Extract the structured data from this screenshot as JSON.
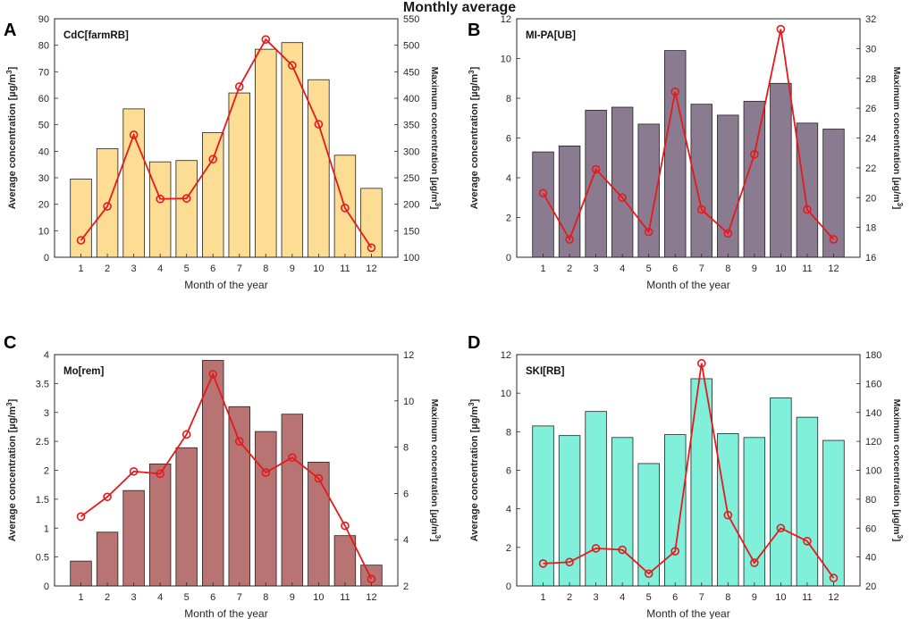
{
  "figure_title": "Monthly average",
  "chart_data": [
    {
      "type": "bar",
      "panel": "A",
      "label": "CdC[farmRB]",
      "bar_color": "#FDDC94",
      "line_color": "#E41A1C",
      "categories": [
        "1",
        "2",
        "3",
        "4",
        "5",
        "6",
        "7",
        "8",
        "9",
        "10",
        "11",
        "12"
      ],
      "xlabel": "Month of the year",
      "ylabel": [
        "Average concentration [µg/m",
        "3",
        "]"
      ],
      "ylabel2": [
        "Maximum concentration [µg/m",
        "3",
        "]"
      ],
      "ylim": [
        0,
        90
      ],
      "yticks": [
        0,
        10,
        20,
        30,
        40,
        50,
        60,
        70,
        80,
        90
      ],
      "y2lim": [
        100,
        550
      ],
      "y2ticks": [
        100,
        150,
        200,
        250,
        300,
        350,
        400,
        450,
        500,
        550
      ],
      "series": [
        {
          "name": "Average concentration",
          "kind": "bar",
          "axis": "left",
          "values": [
            29.5,
            41,
            56,
            36,
            36.5,
            47,
            62,
            78.5,
            81,
            67,
            38.5,
            26
          ]
        },
        {
          "name": "Maximum concentration",
          "kind": "line",
          "axis": "right",
          "values": [
            132,
            196,
            331,
            210,
            211,
            285,
            422,
            511,
            462,
            351,
            193,
            118
          ]
        }
      ]
    },
    {
      "type": "bar",
      "panel": "B",
      "label": "MI-PA[UB]",
      "bar_color": "#8B7B91",
      "line_color": "#E41A1C",
      "categories": [
        "1",
        "2",
        "3",
        "4",
        "5",
        "6",
        "7",
        "8",
        "9",
        "10",
        "11",
        "12"
      ],
      "xlabel": "Month of the year",
      "ylabel": [
        "Average concentration [µg/m",
        "3",
        "]"
      ],
      "ylabel2": [
        "Maximum concentration [µg/m",
        "3",
        "]"
      ],
      "ylim": [
        0,
        12
      ],
      "yticks": [
        0,
        2,
        4,
        6,
        8,
        10,
        12
      ],
      "y2lim": [
        16,
        32
      ],
      "y2ticks": [
        16,
        18,
        20,
        22,
        24,
        26,
        28,
        30,
        32
      ],
      "series": [
        {
          "name": "Average concentration",
          "kind": "bar",
          "axis": "left",
          "values": [
            5.3,
            5.6,
            7.4,
            7.55,
            6.7,
            10.4,
            7.7,
            7.15,
            7.85,
            8.75,
            6.75,
            6.45
          ]
        },
        {
          "name": "Maximum concentration",
          "kind": "line",
          "axis": "right",
          "values": [
            20.3,
            17.2,
            21.9,
            20.0,
            17.7,
            27.1,
            19.2,
            17.6,
            22.9,
            31.3,
            19.2,
            17.2
          ]
        }
      ]
    },
    {
      "type": "bar",
      "panel": "C",
      "label": "Mo[rem]",
      "bar_color": "#B87373",
      "line_color": "#E41A1C",
      "categories": [
        "1",
        "2",
        "3",
        "4",
        "5",
        "6",
        "7",
        "8",
        "9",
        "10",
        "11",
        "12"
      ],
      "xlabel": "Month of the year",
      "ylabel": [
        "Average concentration [µg/m",
        "3",
        "]"
      ],
      "ylabel2": [
        "Maximum concentration [µg/m",
        "3",
        "]"
      ],
      "ylim": [
        0,
        4
      ],
      "yticks": [
        0,
        0.5,
        1,
        1.5,
        2,
        2.5,
        3,
        3.5,
        4
      ],
      "y2lim": [
        2,
        12
      ],
      "y2ticks": [
        2,
        4,
        6,
        8,
        10,
        12
      ],
      "series": [
        {
          "name": "Average concentration",
          "kind": "bar",
          "axis": "left",
          "values": [
            0.43,
            0.93,
            1.65,
            2.11,
            2.39,
            3.9,
            3.1,
            2.67,
            2.97,
            2.14,
            0.87,
            0.36
          ]
        },
        {
          "name": "Maximum concentration",
          "kind": "line",
          "axis": "right",
          "values": [
            5.0,
            5.85,
            6.95,
            6.85,
            8.55,
            11.15,
            8.25,
            6.9,
            7.55,
            6.65,
            4.6,
            2.3
          ]
        }
      ]
    },
    {
      "type": "bar",
      "panel": "D",
      "label": "SKI[RB]",
      "bar_color": "#80F0DB",
      "line_color": "#E41A1C",
      "categories": [
        "1",
        "2",
        "3",
        "4",
        "5",
        "6",
        "7",
        "8",
        "9",
        "10",
        "11",
        "12"
      ],
      "xlabel": "Month of the year",
      "ylabel": [
        "Average concentration [µg/m",
        "3",
        "]"
      ],
      "ylabel2": [
        "Maximum concentration [µg/m",
        "3",
        "]"
      ],
      "ylim": [
        0,
        12
      ],
      "yticks": [
        0,
        2,
        4,
        6,
        8,
        10,
        12
      ],
      "y2lim": [
        20,
        180
      ],
      "y2ticks": [
        20,
        40,
        60,
        80,
        100,
        120,
        140,
        160,
        180
      ],
      "series": [
        {
          "name": "Average concentration",
          "kind": "bar",
          "axis": "left",
          "values": [
            8.3,
            7.8,
            9.05,
            7.7,
            6.35,
            7.85,
            10.75,
            7.9,
            7.7,
            9.75,
            8.75,
            7.55
          ]
        },
        {
          "name": "Maximum concentration",
          "kind": "line",
          "axis": "right",
          "values": [
            35.5,
            36.5,
            46,
            45,
            28.5,
            44,
            174,
            69,
            36,
            60,
            51,
            25.5
          ]
        }
      ]
    }
  ]
}
